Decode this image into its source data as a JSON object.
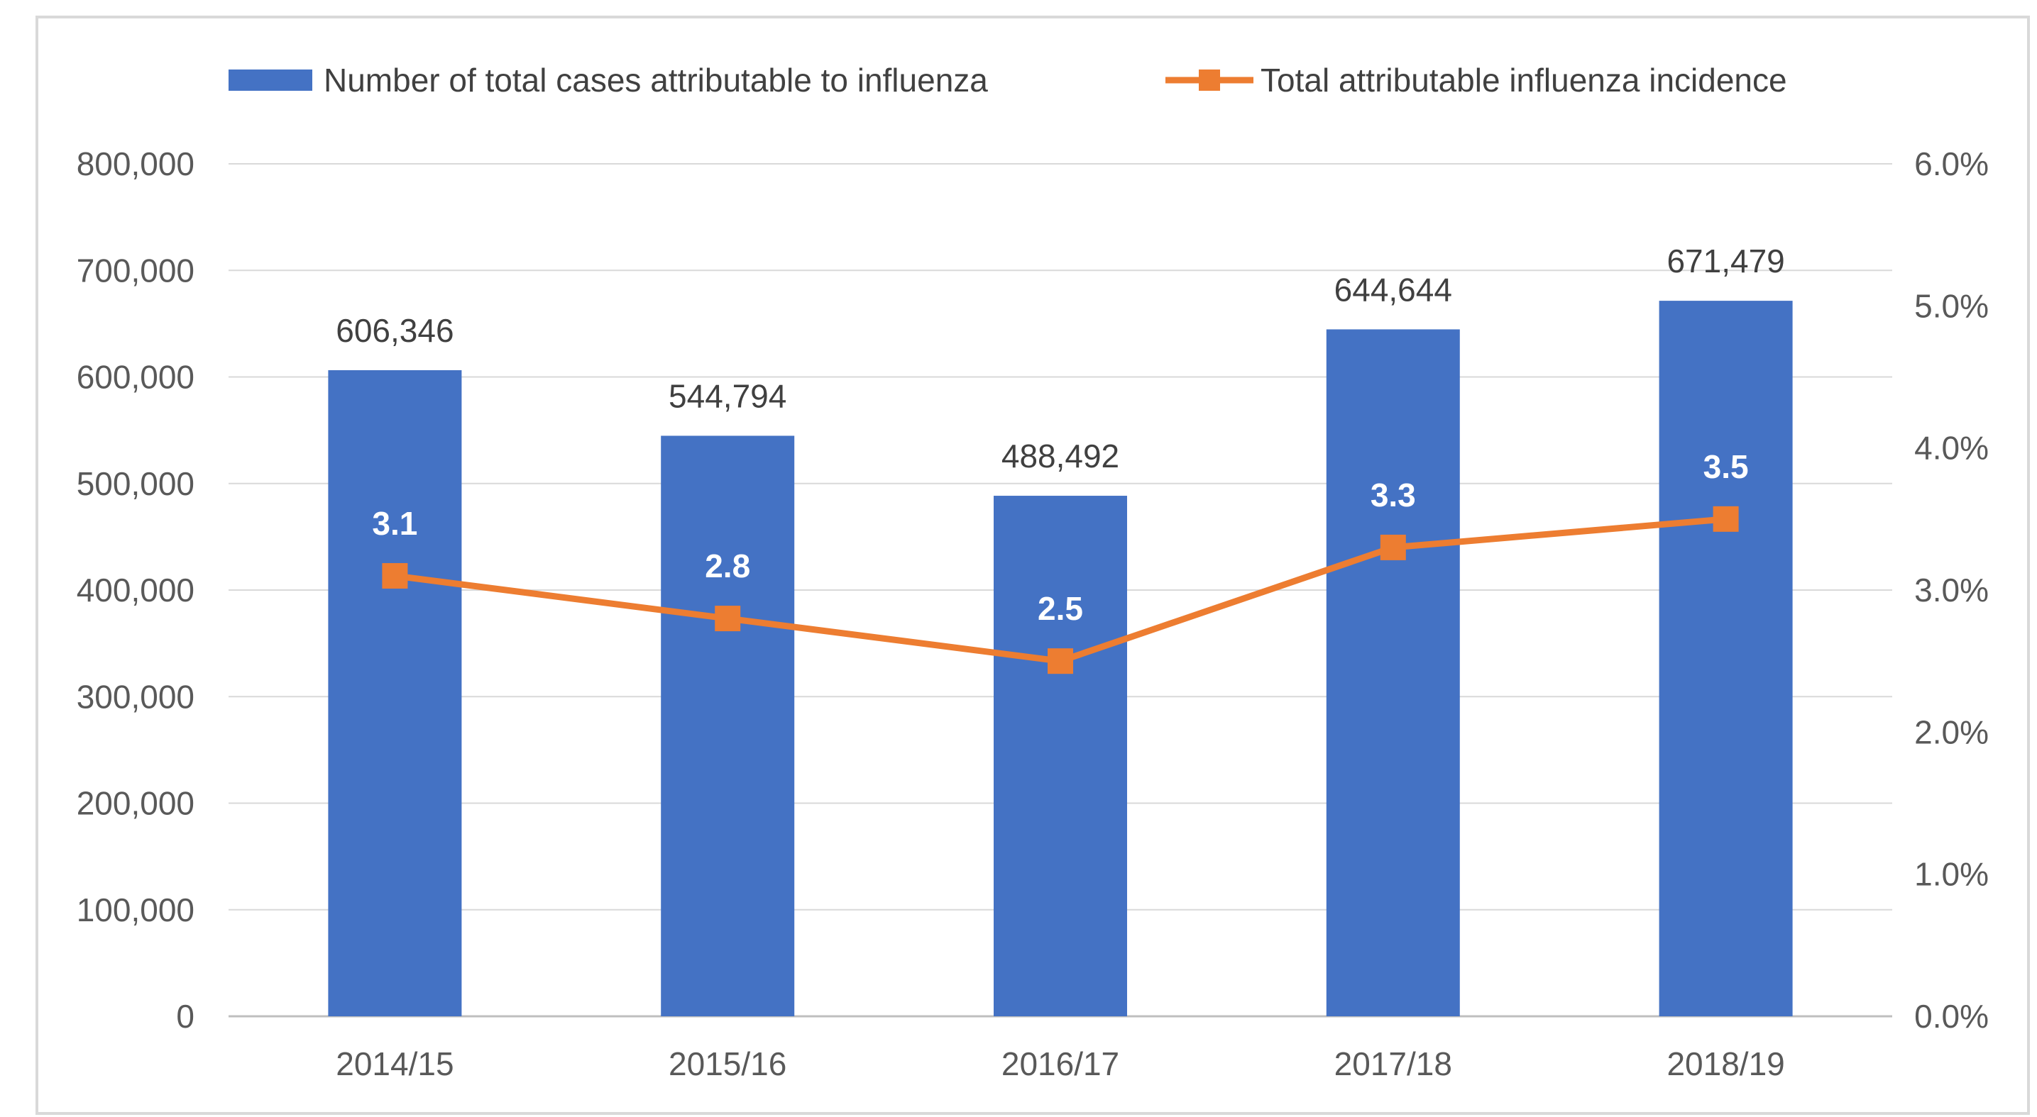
{
  "chart_data": {
    "type": "bar",
    "title": "",
    "xlabel": "",
    "ylabel": "",
    "categories": [
      "2014/15",
      "2015/16",
      "2016/17",
      "2017/18",
      "2018/19"
    ],
    "series": [
      {
        "name": "Number of total cases attributable to influenza",
        "type": "bar",
        "axis": "left",
        "color": "#4472c4",
        "values": [
          606346,
          544794,
          488492,
          644644,
          671479
        ],
        "data_labels": [
          "606,346",
          "544,794",
          "488,492",
          "644,644",
          "671,479"
        ]
      },
      {
        "name": "Total attributable influenza incidence",
        "type": "line",
        "axis": "right",
        "color": "#ed7d31",
        "marker": "square",
        "values": [
          3.1,
          2.8,
          2.5,
          3.3,
          3.5
        ],
        "data_labels": [
          "3.1",
          "2.8",
          "2.5",
          "3.3",
          "3.5"
        ]
      }
    ],
    "ylim": [
      0,
      800000
    ],
    "y_ticks": [
      "800,000",
      "700,000",
      "600,000",
      "500,000",
      "400,000",
      "300,000",
      "200,000",
      "100,000",
      "0"
    ],
    "y2lim": [
      0,
      6
    ],
    "y2_ticks": [
      "6.0%",
      "5.0%",
      "4.0%",
      "3.0%",
      "2.0%",
      "1.0%",
      "0.0%"
    ],
    "grid": true,
    "legend_position": "top",
    "gridline_color": "#d9d9d9",
    "axis_color": "#bfbfbf"
  }
}
